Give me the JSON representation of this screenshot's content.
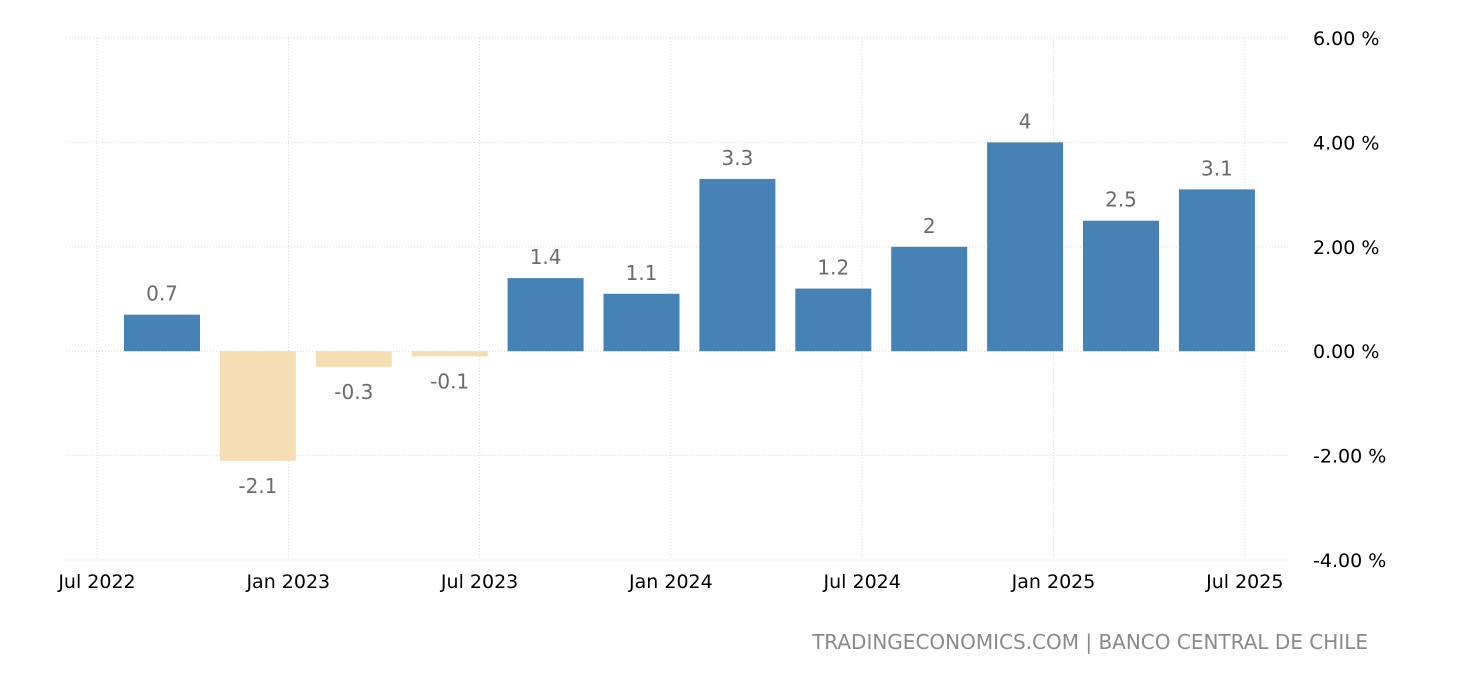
{
  "chart_data": {
    "type": "bar",
    "categories": [
      "Q3 2022",
      "Q4 2022",
      "Q1 2023",
      "Q2 2023",
      "Q3 2023",
      "Q4 2023",
      "Q1 2024",
      "Q2 2024",
      "Q3 2024",
      "Q4 2024",
      "Q1 2025",
      "Q2 2025"
    ],
    "values": [
      0.7,
      -2.1,
      -0.3,
      -0.1,
      1.4,
      1.1,
      3.3,
      1.2,
      2,
      4,
      2.5,
      3.1
    ],
    "value_labels": [
      "0.7",
      "-2.1",
      "-0.3",
      "-0.1",
      "1.4",
      "1.1",
      "3.3",
      "1.2",
      "2",
      "4",
      "2.5",
      "3.1"
    ],
    "ylim": [
      -4,
      6
    ],
    "y_ticks": [
      6,
      4,
      2,
      0,
      -2,
      -4
    ],
    "y_tick_labels": [
      "6.00 %",
      "4.00 %",
      "2.00 %",
      "0.00 %",
      "-2.00 %",
      "-4.00 %"
    ],
    "x_tick_labels": [
      "Jul 2022",
      "Jan 2023",
      "Jul 2023",
      "Jan 2024",
      "Jul 2024",
      "Jan 2025",
      "Jul 2025"
    ],
    "grid": true,
    "colors": {
      "positive": "#4682b4",
      "negative": "#f5deb3",
      "grid": "#d9d9d9"
    }
  },
  "source_text": "TRADINGECONOMICS.COM | BANCO CENTRAL DE CHILE"
}
